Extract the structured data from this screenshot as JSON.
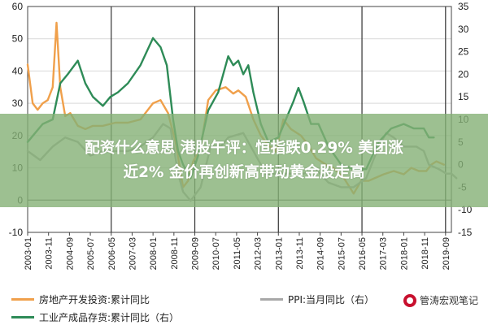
{
  "headline": {
    "line1": "配资什么意思 港股午评：恒指跌0.29% 美团涨",
    "line2": "近2% 金价再创新高带动黄金股走高"
  },
  "legend": {
    "series1": "房地产开发投资:累计同比",
    "series2": "PPI:当月同比（右）",
    "series3": "工业产成品存货:累计同比（右）"
  },
  "watermark": {
    "text": "管涛宏观笔记"
  },
  "colors": {
    "series1": "#f0a04b",
    "series2": "#a8a8a8",
    "series3": "#2e8b57",
    "grid": "#333333"
  },
  "chart_data": {
    "type": "line",
    "left_axis": {
      "range": [
        -10,
        60
      ],
      "ticks": [
        "-10",
        "0",
        "10",
        "20",
        "30",
        "40",
        "50",
        "60"
      ]
    },
    "right_axis": {
      "range": [
        -15,
        35
      ],
      "ticks": [
        "-15",
        "-10",
        "-5",
        "0",
        "5",
        "10",
        "15",
        "20",
        "25",
        "30",
        "35"
      ]
    },
    "x_ticks": [
      "2003-01",
      "2003-11",
      "2004-09",
      "2005-07",
      "2006-05",
      "2007-03",
      "2008-01",
      "2008-11",
      "2009-09",
      "2010-07",
      "2011-05",
      "2012-03",
      "2013-01",
      "2013-11",
      "2014-09",
      "2015-07",
      "2016-05",
      "2017-03",
      "2018-01",
      "2018-11",
      "2019-09"
    ],
    "vertical_lines": [
      "2006-05",
      "2009-09",
      "2013-01",
      "2016-05",
      "2019-09"
    ],
    "series": [
      {
        "axis": "left",
        "x": [
          2003.0,
          2003.2,
          2003.4,
          2003.6,
          2003.8,
          2004.0,
          2004.15,
          2004.3,
          2004.5,
          2004.7,
          2005.0,
          2005.3,
          2005.6,
          2006.0,
          2006.5,
          2007.0,
          2007.5,
          2008.0,
          2008.3,
          2008.6,
          2008.9,
          2009.2,
          2009.4,
          2009.6,
          2009.9,
          2010.2,
          2010.5,
          2010.9,
          2011.2,
          2011.4,
          2011.7,
          2012.0,
          2012.3,
          2012.6,
          2012.9,
          2013.2,
          2013.5,
          2013.9,
          2014.2,
          2014.5,
          2014.9,
          2015.2,
          2015.6,
          2016.0,
          2016.3,
          2016.6,
          2016.9,
          2017.2,
          2017.6,
          2018.0,
          2018.3,
          2018.6,
          2018.9,
          2019.1,
          2019.3,
          2019.6
        ],
        "y": [
          42,
          30,
          28,
          30,
          31,
          35,
          55,
          35,
          26,
          27,
          23,
          22,
          23,
          23,
          24,
          24,
          25,
          30,
          31,
          27,
          18,
          4,
          6,
          12,
          16,
          31,
          34,
          35,
          33,
          34,
          32,
          25,
          20,
          17,
          15,
          25,
          22,
          20,
          17,
          13,
          11,
          10,
          7,
          2,
          6,
          6,
          7,
          8,
          9,
          8,
          10,
          9,
          9,
          11,
          12,
          11
        ]
      },
      {
        "axis": "right",
        "x": [
          2003.0,
          2003.5,
          2004.0,
          2004.5,
          2005.0,
          2005.5,
          2006.0,
          2006.5,
          2007.0,
          2007.5,
          2008.0,
          2008.4,
          2008.7,
          2009.0,
          2009.2,
          2009.5,
          2009.9,
          2010.3,
          2010.7,
          2011.0,
          2011.6,
          2012.0,
          2012.5,
          2013.0,
          2013.5,
          2014.0,
          2014.5,
          2015.0,
          2015.5,
          2016.0,
          2016.5,
          2017.0,
          2017.3,
          2017.6,
          2018.0,
          2018.5,
          2018.8,
          2019.0,
          2019.4,
          2019.7,
          2019.9,
          2020.1
        ],
        "y": [
          3,
          1,
          4,
          6,
          5,
          2,
          3,
          3,
          3,
          4,
          6,
          9,
          8,
          -2,
          -6,
          -8,
          -5,
          4,
          4,
          6,
          7,
          3,
          -2,
          -2,
          -2,
          -2,
          -1,
          -4,
          -5,
          -5,
          -3,
          4,
          7,
          6,
          4,
          4,
          3,
          0,
          -1,
          -2,
          -2,
          -3
        ]
      },
      {
        "axis": "right",
        "x": [
          2003.0,
          2003.3,
          2003.6,
          2004.0,
          2004.3,
          2004.6,
          2005.0,
          2005.3,
          2005.6,
          2006.0,
          2006.3,
          2006.6,
          2007.0,
          2007.5,
          2008.0,
          2008.3,
          2008.55,
          2008.8,
          2009.0,
          2009.2,
          2009.5,
          2009.8,
          2010.2,
          2010.6,
          2011.0,
          2011.2,
          2011.4,
          2011.6,
          2011.8,
          2012.0,
          2012.3,
          2012.6,
          2013.0,
          2013.3,
          2013.6,
          2013.8,
          2014.0,
          2014.3,
          2014.6,
          2015.0,
          2015.5,
          2016.0,
          2016.5,
          2017.0,
          2017.5,
          2018.0,
          2018.4,
          2018.8,
          2019.0,
          2019.2
        ],
        "y": [
          5,
          7,
          9,
          10,
          18,
          20,
          23,
          18,
          15,
          13,
          15,
          16,
          18,
          22,
          28,
          26,
          22,
          10,
          3,
          0,
          -3,
          2,
          12,
          16,
          24,
          22,
          23,
          20,
          22,
          16,
          9,
          5,
          6,
          10,
          14,
          17,
          14,
          9,
          9,
          4,
          0,
          -1,
          -1,
          5,
          8,
          9,
          8,
          8,
          6,
          6
        ]
      }
    ]
  }
}
